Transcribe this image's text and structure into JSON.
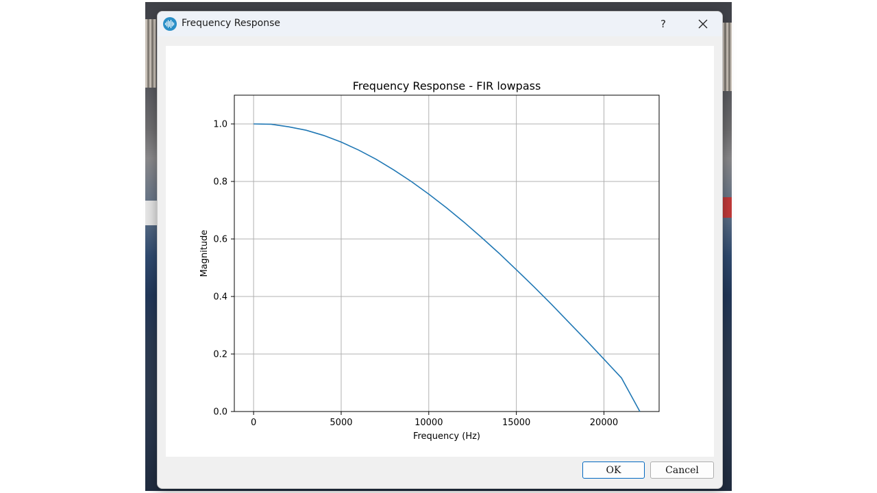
{
  "window": {
    "title": "Frequency Response",
    "help_label": "?",
    "icon": "waveform-icon",
    "close_icon": "close-icon"
  },
  "buttons": {
    "ok_label": "OK",
    "cancel_label": "Cancel"
  },
  "colors": {
    "line": "#1f77b4",
    "grid": "#b0b0b0",
    "accent": "#0067c0"
  },
  "chart_data": {
    "type": "line",
    "title": "Frequency Response - FIR lowpass",
    "xlabel": "Frequency (Hz)",
    "ylabel": "Magnitude",
    "xlim": [
      -1100,
      23150
    ],
    "ylim": [
      0,
      1.1
    ],
    "xticks": [
      0,
      5000,
      10000,
      15000,
      20000
    ],
    "xtick_labels": [
      "0",
      "5000",
      "10000",
      "15000",
      "20000"
    ],
    "yticks": [
      0.0,
      0.2,
      0.4,
      0.6,
      0.8,
      1.0
    ],
    "ytick_labels": [
      "0.0",
      "0.2",
      "0.4",
      "0.6",
      "0.8",
      "1.0"
    ],
    "grid": true,
    "series": [
      {
        "x": [
          0,
          1000,
          2000,
          3000,
          4000,
          5000,
          6000,
          7000,
          8000,
          9000,
          10000,
          11000,
          12000,
          13000,
          14000,
          15000,
          16000,
          17000,
          18000,
          19000,
          20000,
          21000,
          22050
        ],
        "values": [
          1.0,
          0.999,
          0.99,
          0.978,
          0.96,
          0.937,
          0.909,
          0.877,
          0.84,
          0.8,
          0.756,
          0.709,
          0.659,
          0.606,
          0.551,
          0.493,
          0.434,
          0.373,
          0.31,
          0.247,
          0.182,
          0.117,
          0.0
        ]
      }
    ]
  }
}
